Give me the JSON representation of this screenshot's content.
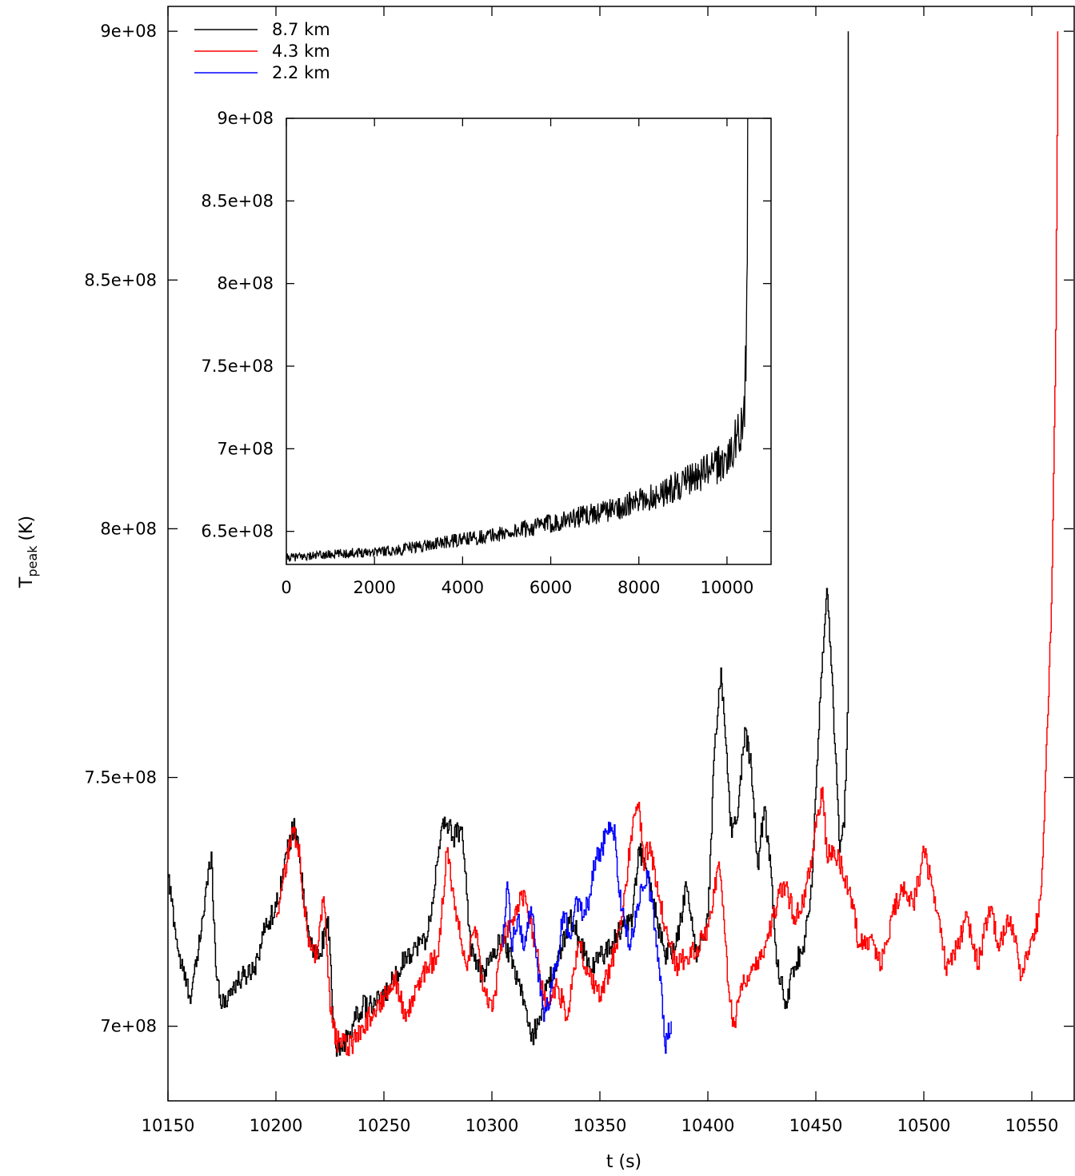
{
  "chart_data": [
    {
      "type": "line",
      "title": "",
      "xlabel": "t (s)",
      "ylabel": "T",
      "ylabel_subscript": "peak",
      "ylabel_suffix": "(K)",
      "xlim": [
        10150,
        10570
      ],
      "ylim": [
        685000000,
        905000000
      ],
      "x_ticks": [
        10150,
        10200,
        10250,
        10300,
        10350,
        10400,
        10450,
        10500,
        10550
      ],
      "x_tick_labels": [
        "10150",
        "10200",
        "10250",
        "10300",
        "10350",
        "10400",
        "10450",
        "10500",
        "10550"
      ],
      "y_ticks": [
        700000000,
        750000000,
        800000000,
        850000000,
        900000000
      ],
      "y_tick_labels": [
        "7e+08",
        "7.5e+08",
        "8e+08",
        "8.5e+08",
        "9e+08"
      ],
      "grid": false,
      "legend_position": "top-left",
      "series": [
        {
          "name": "8.7 km",
          "color": "#000000",
          "x": [
            10150,
            10155,
            10160,
            10163,
            10166,
            10170,
            10172,
            10175,
            10180,
            10185,
            10190,
            10195,
            10200,
            10205,
            10208,
            10210,
            10213,
            10216,
            10220,
            10224,
            10226,
            10228,
            10232,
            10236,
            10240,
            10245,
            10250,
            10255,
            10260,
            10265,
            10270,
            10275,
            10278,
            10282,
            10286,
            10290,
            10295,
            10300,
            10305,
            10310,
            10315,
            10318,
            10322,
            10326,
            10330,
            10336,
            10340,
            10345,
            10350,
            10355,
            10360,
            10365,
            10368,
            10372,
            10376,
            10380,
            10385,
            10390,
            10395,
            10400,
            10403,
            10406,
            10408,
            10411,
            10414,
            10417,
            10420,
            10423,
            10426,
            10429,
            10432,
            10436,
            10440,
            10444,
            10448,
            10450,
            10452,
            10455,
            10458,
            10461,
            10463,
            10464.5,
            10465
          ],
          "y": [
            730000000,
            714000000,
            706000000,
            712000000,
            722000000,
            735000000,
            712000000,
            704000000,
            708000000,
            710000000,
            712000000,
            720000000,
            724000000,
            735000000,
            740000000,
            738000000,
            724000000,
            716000000,
            714000000,
            722000000,
            704000000,
            694000000,
            697000000,
            701000000,
            704000000,
            704000000,
            706000000,
            710000000,
            714000000,
            716000000,
            718000000,
            734000000,
            742000000,
            738000000,
            740000000,
            716000000,
            710000000,
            714000000,
            718000000,
            712000000,
            705000000,
            697000000,
            702000000,
            709000000,
            712000000,
            722000000,
            718000000,
            712000000,
            714000000,
            716000000,
            720000000,
            722000000,
            736000000,
            730000000,
            722000000,
            714000000,
            716000000,
            728000000,
            714000000,
            722000000,
            756000000,
            772000000,
            758000000,
            738000000,
            744000000,
            760000000,
            752000000,
            732000000,
            744000000,
            732000000,
            712000000,
            705000000,
            712000000,
            716000000,
            728000000,
            748000000,
            766000000,
            788000000,
            764000000,
            735000000,
            740000000,
            763000000,
            900000000
          ]
        },
        {
          "name": "4.3 km",
          "color": "#ff0000",
          "x": [
            10200,
            10205,
            10208,
            10211,
            10215,
            10219,
            10222,
            10225,
            10228,
            10235,
            10240,
            10245,
            10250,
            10255,
            10260,
            10265,
            10270,
            10275,
            10279,
            10283,
            10288,
            10292,
            10296,
            10300,
            10305,
            10310,
            10315,
            10320,
            10325,
            10330,
            10335,
            10340,
            10345,
            10350,
            10355,
            10360,
            10365,
            10368,
            10370,
            10373,
            10376,
            10380,
            10385,
            10390,
            10395,
            10400,
            10405,
            10408,
            10410,
            10412,
            10415,
            10420,
            10425,
            10430,
            10435,
            10440,
            10445,
            10450,
            10453,
            10455,
            10458,
            10462,
            10466,
            10470,
            10475,
            10480,
            10485,
            10490,
            10495,
            10500,
            10505,
            10510,
            10515,
            10520,
            10525,
            10530,
            10535,
            10540,
            10545,
            10550,
            10553,
            10555,
            10557,
            10559,
            10561,
            10562
          ],
          "y": [
            722000000,
            733000000,
            740000000,
            734000000,
            716000000,
            714000000,
            726000000,
            703000000,
            697000000,
            696000000,
            700000000,
            703000000,
            706000000,
            710000000,
            701000000,
            708000000,
            712000000,
            714000000,
            735000000,
            724000000,
            712000000,
            720000000,
            707000000,
            703000000,
            718000000,
            722000000,
            727000000,
            716000000,
            704000000,
            708000000,
            702000000,
            717000000,
            710000000,
            706000000,
            712000000,
            722000000,
            740000000,
            745000000,
            733000000,
            737000000,
            728000000,
            720000000,
            712000000,
            714000000,
            716000000,
            720000000,
            733000000,
            717000000,
            705000000,
            700000000,
            708000000,
            712000000,
            714000000,
            722000000,
            729000000,
            722000000,
            726000000,
            740000000,
            748000000,
            734000000,
            736000000,
            732000000,
            726000000,
            716000000,
            718000000,
            712000000,
            722000000,
            728000000,
            724000000,
            735000000,
            726000000,
            712000000,
            716000000,
            722000000,
            712000000,
            724000000,
            716000000,
            722000000,
            710000000,
            718000000,
            722000000,
            734000000,
            760000000,
            785000000,
            840000000,
            900000000
          ]
        },
        {
          "name": "2.2 km",
          "color": "#0000ff",
          "x": [
            10305,
            10307,
            10309,
            10312,
            10315,
            10318,
            10321,
            10324,
            10327,
            10330,
            10333,
            10336,
            10339,
            10342,
            10345,
            10348,
            10351,
            10354,
            10357,
            10359,
            10361,
            10364,
            10367,
            10370,
            10372,
            10374,
            10376,
            10378,
            10380,
            10383
          ],
          "y": [
            716000000,
            729000000,
            716000000,
            722000000,
            716000000,
            724000000,
            712000000,
            701000000,
            707000000,
            713000000,
            723000000,
            718000000,
            726000000,
            722000000,
            726000000,
            734000000,
            736000000,
            741000000,
            738000000,
            726000000,
            722000000,
            716000000,
            724000000,
            728000000,
            730000000,
            725000000,
            716000000,
            710000000,
            696000000,
            701000000
          ]
        }
      ]
    },
    {
      "type": "line",
      "title": "",
      "xlabel": "",
      "ylabel": "",
      "xlim": [
        0,
        11000
      ],
      "ylim": [
        630000000,
        900000000
      ],
      "x_ticks": [
        0,
        2000,
        4000,
        6000,
        8000,
        10000
      ],
      "x_tick_labels": [
        "0",
        "2000",
        "4000",
        "6000",
        "8000",
        "10000"
      ],
      "y_ticks": [
        650000000,
        700000000,
        750000000,
        800000000,
        850000000,
        900000000
      ],
      "y_tick_labels": [
        "6.5e+08",
        "7e+08",
        "7.5e+08",
        "8e+08",
        "8.5e+08",
        "9e+08"
      ],
      "grid": false,
      "series": [
        {
          "color": "#000000",
          "x": [
            0,
            500,
            1000,
            1500,
            2000,
            2500,
            3000,
            3500,
            4000,
            4500,
            5000,
            5500,
            6000,
            6500,
            7000,
            7500,
            8000,
            8500,
            9000,
            9500,
            9800,
            10000,
            10100,
            10200,
            10300,
            10350,
            10400,
            10420,
            10440,
            10460,
            10470
          ],
          "y": [
            634000000,
            635000000,
            636000000,
            637000000,
            638000000,
            638500000,
            641000000,
            643000000,
            645000000,
            647000000,
            649000000,
            652000000,
            655000000,
            658000000,
            661000000,
            664000000,
            668000000,
            673000000,
            679000000,
            686000000,
            690000000,
            694000000,
            698000000,
            705000000,
            712000000,
            720000000,
            730000000,
            745000000,
            760000000,
            800000000,
            900000000
          ]
        }
      ]
    }
  ]
}
